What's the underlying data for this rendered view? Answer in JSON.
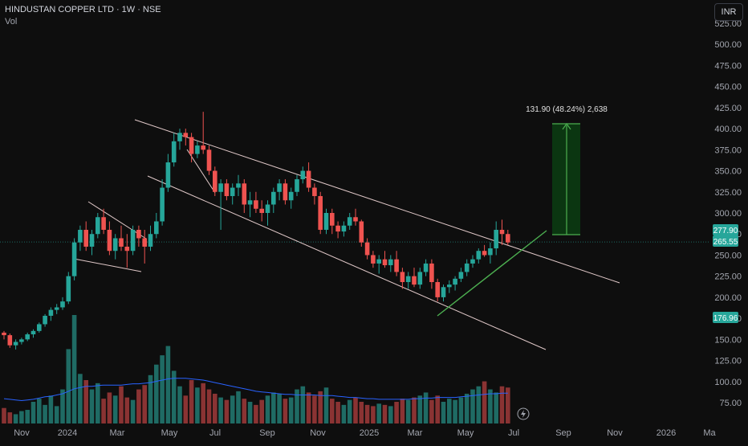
{
  "header": {
    "title": "HINDUSTAN COPPER LTD · 1W · NSE",
    "volume_label": "Vol",
    "currency_button": "INR"
  },
  "colors": {
    "background": "#0e0e0e",
    "up": "#26a69a",
    "down": "#ef5350",
    "volume_up": "#1f6b64",
    "volume_down": "#8a3333",
    "volume_ma": "#2962ff",
    "channel_lines": "#e0c8c8",
    "trend_line": "#4caf50",
    "measure_box": "#0a3d12",
    "measure_line": "#4caf50",
    "price_tag_green": "#26a69a",
    "grid_text": "#a3a6af"
  },
  "annotations": {
    "measure_label": "131.90 (48.24%) 2,638"
  },
  "price_tags": [
    {
      "value": "277.90",
      "color": "#26a69a"
    },
    {
      "value": "265.55",
      "color": "#26a69a"
    },
    {
      "value": "176.96",
      "color": "#26a69a"
    }
  ],
  "chart_data": {
    "type": "candlestick",
    "title": "HINDUSTAN COPPER LTD · 1W · NSE",
    "y_ticks": [
      "75.00",
      "100.00",
      "125.00",
      "150.00",
      "175.00",
      "200.00",
      "225.00",
      "250.00",
      "275.00",
      "300.00",
      "325.00",
      "350.00",
      "375.00",
      "400.00",
      "425.00",
      "450.00",
      "475.00",
      "500.00",
      "525.00"
    ],
    "x_ticks": [
      "Nov",
      "2024",
      "Mar",
      "May",
      "Jul",
      "Sep",
      "Nov",
      "2025",
      "Mar",
      "May",
      "Jul",
      "Sep",
      "Nov",
      "2026",
      "Ma"
    ],
    "ylim": [
      60,
      525
    ],
    "candles": [
      [
        158,
        160,
        150,
        155
      ],
      [
        155,
        157,
        140,
        143
      ],
      [
        143,
        150,
        138,
        147
      ],
      [
        147,
        152,
        144,
        150
      ],
      [
        150,
        158,
        148,
        156
      ],
      [
        156,
        162,
        152,
        160
      ],
      [
        160,
        170,
        158,
        168
      ],
      [
        168,
        180,
        165,
        178
      ],
      [
        178,
        188,
        172,
        185
      ],
      [
        185,
        192,
        180,
        188
      ],
      [
        188,
        200,
        185,
        195
      ],
      [
        195,
        230,
        192,
        225
      ],
      [
        225,
        270,
        220,
        265
      ],
      [
        265,
        285,
        255,
        280
      ],
      [
        280,
        290,
        255,
        260
      ],
      [
        260,
        280,
        250,
        275
      ],
      [
        275,
        300,
        270,
        295
      ],
      [
        295,
        305,
        275,
        280
      ],
      [
        280,
        290,
        250,
        255
      ],
      [
        255,
        275,
        245,
        270
      ],
      [
        270,
        285,
        255,
        260
      ],
      [
        260,
        275,
        235,
        255
      ],
      [
        255,
        285,
        250,
        280
      ],
      [
        280,
        285,
        260,
        270
      ],
      [
        270,
        280,
        240,
        260
      ],
      [
        260,
        285,
        255,
        275
      ],
      [
        275,
        300,
        270,
        290
      ],
      [
        290,
        340,
        285,
        330
      ],
      [
        330,
        370,
        325,
        360
      ],
      [
        360,
        395,
        355,
        385
      ],
      [
        385,
        400,
        375,
        395
      ],
      [
        395,
        400,
        380,
        390
      ],
      [
        390,
        395,
        360,
        370
      ],
      [
        370,
        385,
        365,
        380
      ],
      [
        380,
        420,
        370,
        375
      ],
      [
        375,
        380,
        345,
        350
      ],
      [
        350,
        355,
        320,
        325
      ],
      [
        325,
        340,
        280,
        335
      ],
      [
        335,
        340,
        315,
        320
      ],
      [
        320,
        335,
        310,
        330
      ],
      [
        330,
        345,
        320,
        335
      ],
      [
        335,
        340,
        300,
        310
      ],
      [
        310,
        325,
        295,
        315
      ],
      [
        315,
        325,
        300,
        305
      ],
      [
        305,
        315,
        290,
        300
      ],
      [
        300,
        315,
        285,
        310
      ],
      [
        310,
        330,
        300,
        325
      ],
      [
        325,
        340,
        315,
        335
      ],
      [
        335,
        340,
        310,
        315
      ],
      [
        315,
        330,
        305,
        325
      ],
      [
        325,
        345,
        320,
        340
      ],
      [
        340,
        355,
        335,
        350
      ],
      [
        350,
        360,
        325,
        330
      ],
      [
        330,
        335,
        310,
        320
      ],
      [
        320,
        325,
        275,
        280
      ],
      [
        280,
        305,
        275,
        300
      ],
      [
        300,
        305,
        275,
        285
      ],
      [
        285,
        290,
        270,
        278
      ],
      [
        278,
        290,
        272,
        285
      ],
      [
        285,
        300,
        280,
        295
      ],
      [
        295,
        305,
        285,
        290
      ],
      [
        290,
        292,
        260,
        265
      ],
      [
        265,
        270,
        245,
        250
      ],
      [
        250,
        255,
        235,
        240
      ],
      [
        240,
        250,
        228,
        245
      ],
      [
        245,
        255,
        235,
        238
      ],
      [
        238,
        250,
        230,
        245
      ],
      [
        245,
        255,
        225,
        230
      ],
      [
        230,
        235,
        210,
        218
      ],
      [
        218,
        230,
        210,
        225
      ],
      [
        225,
        235,
        212,
        215
      ],
      [
        215,
        235,
        210,
        230
      ],
      [
        230,
        245,
        225,
        240
      ],
      [
        240,
        245,
        210,
        218
      ],
      [
        218,
        222,
        195,
        200
      ],
      [
        200,
        215,
        195,
        212
      ],
      [
        212,
        220,
        205,
        215
      ],
      [
        215,
        225,
        208,
        222
      ],
      [
        222,
        235,
        218,
        230
      ],
      [
        230,
        245,
        225,
        240
      ],
      [
        240,
        250,
        235,
        245
      ],
      [
        245,
        258,
        240,
        255
      ],
      [
        255,
        262,
        248,
        250
      ],
      [
        250,
        265,
        240,
        258
      ],
      [
        258,
        290,
        250,
        280
      ],
      [
        280,
        292,
        262,
        275
      ],
      [
        275,
        280,
        262,
        265
      ]
    ],
    "volumes": [
      25,
      18,
      15,
      20,
      22,
      35,
      40,
      30,
      45,
      28,
      55,
      120,
      175,
      80,
      70,
      55,
      65,
      40,
      50,
      45,
      60,
      42,
      38,
      55,
      62,
      78,
      95,
      110,
      125,
      85,
      60,
      45,
      70,
      58,
      65,
      55,
      48,
      42,
      38,
      45,
      52,
      40,
      35,
      30,
      38,
      45,
      50,
      48,
      40,
      42,
      55,
      60,
      50,
      45,
      52,
      58,
      40,
      35,
      30,
      38,
      42,
      35,
      30,
      28,
      32,
      30,
      28,
      35,
      40,
      38,
      42,
      45,
      50,
      38,
      45,
      35,
      40,
      38,
      42,
      48,
      55,
      60,
      68,
      55,
      50,
      60,
      58
    ],
    "volume_ma": [
      40,
      39,
      38,
      37,
      38,
      39,
      41,
      43,
      44,
      46,
      48,
      52,
      56,
      58,
      60,
      60,
      61,
      62,
      62,
      62,
      62,
      63,
      64,
      64,
      65,
      66,
      68,
      70,
      72,
      73,
      73,
      73,
      72,
      71,
      70,
      68,
      66,
      64,
      62,
      60,
      58,
      56,
      54,
      52,
      51,
      50,
      49,
      48,
      47,
      47,
      46,
      46,
      46,
      46,
      45,
      45,
      45,
      44,
      43,
      42,
      42,
      41,
      40,
      40,
      39,
      39,
      39,
      39,
      39,
      39,
      40,
      40,
      41,
      41,
      42,
      42,
      42,
      42,
      43,
      44,
      45,
      46,
      47,
      48,
      48,
      49,
      49
    ]
  }
}
